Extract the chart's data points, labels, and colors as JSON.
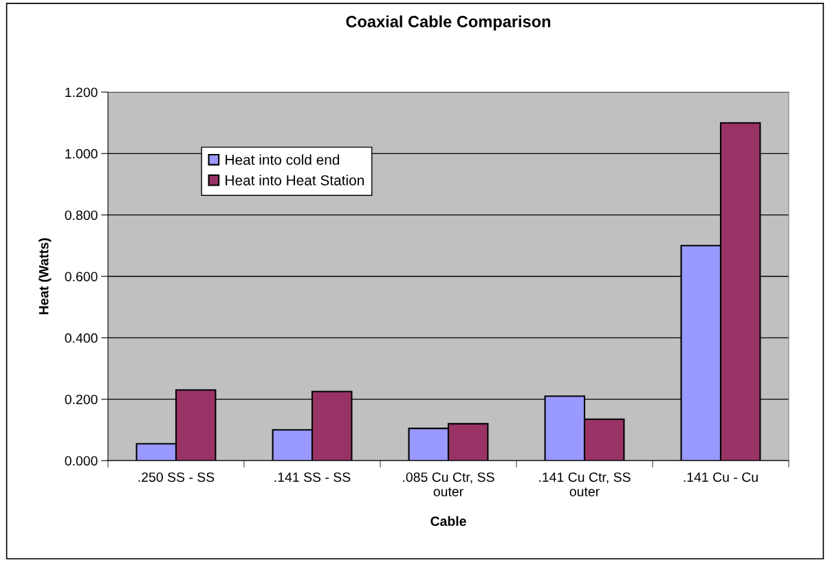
{
  "chart_data": {
    "type": "bar",
    "title": "Coaxial Cable Comparison",
    "xlabel": "Cable",
    "ylabel": "Heat (Watts)",
    "categories": [
      ".250 SS - SS",
      ".141 SS - SS",
      ".085 Cu Ctr, SS\nouter",
      ".141 Cu Ctr, SS\nouter",
      ".141 Cu - Cu"
    ],
    "series": [
      {
        "name": "Heat into cold end",
        "color": "#9999ff",
        "values": [
          0.055,
          0.1,
          0.105,
          0.21,
          0.7
        ]
      },
      {
        "name": "Heat into Heat Station",
        "color": "#993366",
        "values": [
          0.23,
          0.225,
          0.12,
          0.135,
          1.1
        ]
      }
    ],
    "ylim": [
      0,
      1.2
    ],
    "yticks": [
      {
        "value": 0,
        "label": "0.000"
      },
      {
        "value": 0.2,
        "label": "0.200"
      },
      {
        "value": 0.4,
        "label": "0.400"
      },
      {
        "value": 0.6,
        "label": "0.600"
      },
      {
        "value": 0.8,
        "label": "0.800"
      },
      {
        "value": 1.0,
        "label": "1.000"
      },
      {
        "value": 1.2,
        "label": "1.200"
      }
    ],
    "grid": "y",
    "legend": "top left"
  }
}
